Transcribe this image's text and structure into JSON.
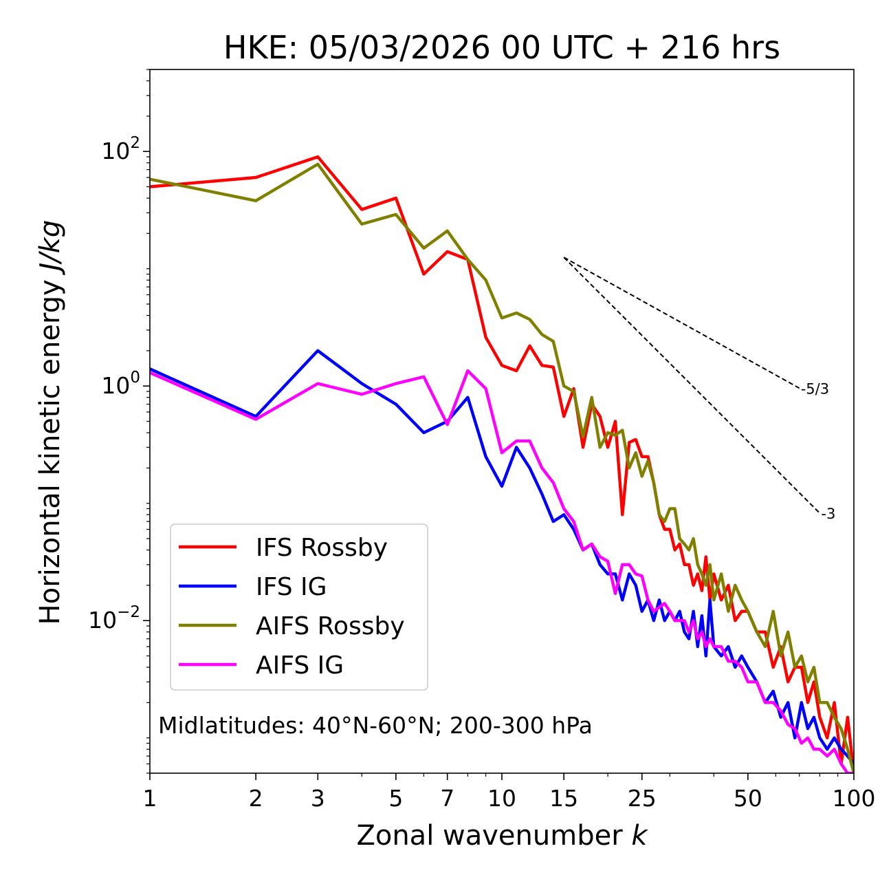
{
  "chart_data": {
    "type": "line",
    "title": "HKE: 05/03/2026 00 UTC + 216 hrs",
    "xlabel": "Zonal wavenumber",
    "xlabel_var": "k",
    "ylabel": "Horizontal kinetic energy",
    "ylabel_units": "J/kg",
    "xscale": "log",
    "yscale": "log",
    "xlim": [
      1,
      100
    ],
    "ylim": [
      0.0005,
      500
    ],
    "x_ticks": [
      1,
      2,
      3,
      5,
      7,
      10,
      15,
      25,
      50,
      100
    ],
    "x_tick_labels": [
      "1",
      "2",
      "3",
      "5",
      "7",
      "10",
      "15",
      "25",
      "50",
      "100"
    ],
    "y_ticks": [
      0.01,
      1,
      100
    ],
    "y_tick_labels": [
      {
        "base": "10",
        "exp": "−2"
      },
      {
        "base": "10",
        "exp": "0"
      },
      {
        "base": "10",
        "exp": "2"
      }
    ],
    "annotation": "Midlatitudes: 40°N-60°N; 200-300 hPa",
    "legend_position": "lower-left",
    "reference_lines": [
      {
        "label": "-5/3",
        "slope": -1.6667,
        "x0": 15,
        "y0": 12.5,
        "x1": 70
      },
      {
        "label": "-3",
        "slope": -3,
        "x0": 15,
        "y0": 12.5,
        "x1": 80
      }
    ],
    "series": [
      {
        "name": "IFS Rossby",
        "color": "#ff0000",
        "x": [
          1,
          2,
          3,
          4,
          5,
          6,
          7,
          8,
          9,
          10,
          11,
          12,
          13,
          14,
          15,
          16,
          17,
          18,
          19,
          20,
          21,
          22,
          23,
          24,
          25,
          26,
          27,
          28,
          29,
          30,
          31,
          32,
          33,
          34,
          35,
          36,
          37,
          38,
          39,
          40,
          42,
          44,
          46,
          48,
          50,
          53,
          56,
          59,
          62,
          65,
          68,
          71,
          74,
          77,
          80,
          84,
          88,
          92,
          96,
          100
        ],
        "y": [
          50,
          60,
          90,
          32,
          40,
          9,
          14,
          12,
          2.6,
          1.5,
          1.35,
          2.2,
          1.5,
          1.45,
          0.55,
          0.95,
          0.3,
          0.7,
          0.55,
          0.3,
          0.5,
          0.08,
          0.33,
          0.35,
          0.25,
          0.25,
          0.15,
          0.08,
          0.06,
          0.06,
          0.04,
          0.045,
          0.03,
          0.03,
          0.02,
          0.025,
          0.018,
          0.035,
          0.015,
          0.025,
          0.015,
          0.02,
          0.01,
          0.012,
          0.012,
          0.008,
          0.008,
          0.004,
          0.006,
          0.003,
          0.004,
          0.004,
          0.002,
          0.003,
          0.0015,
          0.001,
          0.002,
          0.0006,
          0.0015,
          0.0005
        ]
      },
      {
        "name": "IFS IG",
        "color": "#0000ff",
        "x": [
          1,
          2,
          3,
          4,
          5,
          6,
          7,
          8,
          9,
          10,
          11,
          12,
          13,
          14,
          15,
          16,
          17,
          18,
          19,
          20,
          21,
          22,
          23,
          24,
          25,
          26,
          27,
          28,
          29,
          30,
          31,
          32,
          33,
          34,
          35,
          36,
          37,
          38,
          39,
          40,
          42,
          44,
          46,
          48,
          50,
          53,
          56,
          59,
          62,
          65,
          68,
          71,
          74,
          77,
          80,
          84,
          88,
          92,
          96,
          100
        ],
        "y": [
          1.4,
          0.55,
          2,
          1.05,
          0.7,
          0.4,
          0.5,
          0.8,
          0.25,
          0.14,
          0.3,
          0.2,
          0.12,
          0.07,
          0.08,
          0.06,
          0.04,
          0.045,
          0.03,
          0.025,
          0.025,
          0.015,
          0.025,
          0.02,
          0.012,
          0.015,
          0.01,
          0.015,
          0.01,
          0.012,
          0.01,
          0.012,
          0.008,
          0.007,
          0.012,
          0.006,
          0.011,
          0.005,
          0.015,
          0.006,
          0.005,
          0.006,
          0.004,
          0.005,
          0.004,
          0.003,
          0.002,
          0.0025,
          0.0015,
          0.002,
          0.001,
          0.002,
          0.0012,
          0.0015,
          0.001,
          0.0008,
          0.001,
          0.0008,
          0.0007,
          0.0006
        ]
      },
      {
        "name": "AIFS Rossby",
        "color": "#808000",
        "x": [
          1,
          2,
          3,
          4,
          5,
          6,
          7,
          8,
          9,
          10,
          11,
          12,
          13,
          14,
          15,
          16,
          17,
          18,
          19,
          20,
          21,
          22,
          23,
          24,
          25,
          26,
          27,
          28,
          29,
          30,
          31,
          32,
          33,
          34,
          35,
          36,
          37,
          38,
          39,
          40,
          42,
          44,
          46,
          48,
          50,
          53,
          56,
          59,
          62,
          65,
          68,
          71,
          74,
          77,
          80,
          84,
          88,
          92,
          96,
          100
        ],
        "y": [
          58,
          38,
          78,
          24,
          29,
          15,
          21,
          12,
          8,
          3.8,
          4.2,
          3.7,
          2.75,
          2.4,
          1,
          0.9,
          0.37,
          0.8,
          0.3,
          0.4,
          0.38,
          0.42,
          0.2,
          0.27,
          0.17,
          0.23,
          0.15,
          0.08,
          0.07,
          0.09,
          0.09,
          0.05,
          0.045,
          0.04,
          0.05,
          0.03,
          0.025,
          0.02,
          0.03,
          0.015,
          0.025,
          0.012,
          0.02,
          0.015,
          0.012,
          0.008,
          0.006,
          0.012,
          0.005,
          0.008,
          0.004,
          0.005,
          0.003,
          0.004,
          0.002,
          0.002,
          0.0015,
          0.0012,
          0.0008,
          0.0005
        ]
      },
      {
        "name": "AIFS IG",
        "color": "#ff00ff",
        "x": [
          1,
          2,
          3,
          4,
          5,
          6,
          7,
          8,
          9,
          10,
          11,
          12,
          13,
          14,
          15,
          16,
          17,
          18,
          19,
          20,
          21,
          22,
          23,
          24,
          25,
          26,
          27,
          28,
          29,
          30,
          31,
          32,
          33,
          34,
          35,
          36,
          37,
          38,
          39,
          40,
          42,
          44,
          46,
          48,
          50,
          53,
          56,
          59,
          62,
          65,
          68,
          71,
          74,
          77,
          80,
          84,
          88,
          92,
          96,
          100
        ],
        "y": [
          1.3,
          0.52,
          1.05,
          0.85,
          1.05,
          1.2,
          0.47,
          1.35,
          0.95,
          0.27,
          0.34,
          0.34,
          0.2,
          0.15,
          0.09,
          0.07,
          0.04,
          0.045,
          0.035,
          0.032,
          0.017,
          0.03,
          0.03,
          0.025,
          0.024,
          0.015,
          0.012,
          0.013,
          0.014,
          0.012,
          0.01,
          0.01,
          0.01,
          0.008,
          0.01,
          0.007,
          0.008,
          0.006,
          0.007,
          0.006,
          0.006,
          0.0045,
          0.0045,
          0.004,
          0.003,
          0.003,
          0.002,
          0.002,
          0.0017,
          0.0013,
          0.0012,
          0.0009,
          0.001,
          0.0008,
          0.0008,
          0.0007,
          0.0008,
          0.0006,
          0.0005,
          0.0005
        ]
      }
    ]
  }
}
